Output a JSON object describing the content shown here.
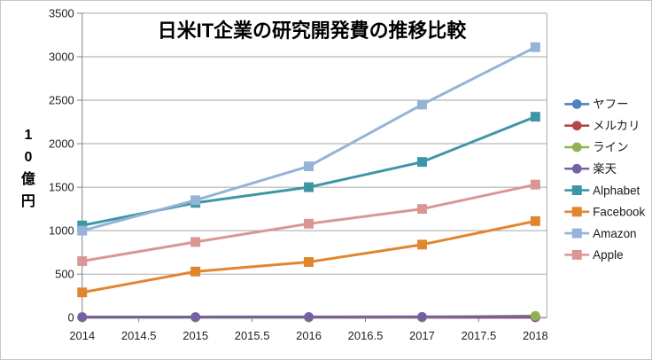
{
  "window": {
    "background": "#ffffff",
    "border_color": "#c6c6c6"
  },
  "styles": {
    "grid_color": "#a6a6a6",
    "axis_color": "#808080",
    "tick_label_color": "#1f1f1f",
    "title_color": "#000000",
    "legend_text_color": "#1a1a1a"
  },
  "chart_data": {
    "type": "line",
    "title": "日米IT企業の研究開発費の推移比較",
    "xlabel": "",
    "ylabel": "10億円",
    "grid": true,
    "legend_position": "right",
    "x": [
      2014,
      2015,
      2016,
      2017,
      2018
    ],
    "x_axis": {
      "min": 2014,
      "max": 2018,
      "tick_step": 0.5,
      "tick_labels": [
        "2014",
        "2014.5",
        "2015",
        "2015.5",
        "2016",
        "2016.5",
        "2017",
        "2017.5",
        "2018"
      ]
    },
    "y_axis": {
      "min": 0,
      "max": 3500,
      "tick_step": 500,
      "tick_labels": [
        "0",
        "500",
        "1000",
        "1500",
        "2000",
        "2500",
        "3000",
        "3500"
      ]
    },
    "legend": [
      "ヤフー",
      "メルカリ",
      "ライン",
      "楽天",
      "Alphabet",
      "Facebook",
      "Amazon",
      "Apple"
    ],
    "series": [
      {
        "name": "ヤフー",
        "color": "#4f81bd",
        "marker": "circle",
        "values": [
          5,
          5,
          5,
          5,
          5
        ]
      },
      {
        "name": "メルカリ",
        "color": "#b4464b",
        "marker": "circle",
        "values": [
          3,
          3,
          3,
          3,
          3
        ]
      },
      {
        "name": "ライン",
        "color": "#94b054",
        "marker": "circle",
        "values": [
          3,
          3,
          4,
          5,
          20
        ]
      },
      {
        "name": "楽天",
        "color": "#7460a5",
        "marker": "circle",
        "values": [
          8,
          8,
          9,
          10,
          11
        ]
      },
      {
        "name": "Alphabet",
        "color": "#3d96a8",
        "marker": "square",
        "values": [
          1060,
          1320,
          1500,
          1790,
          2310
        ]
      },
      {
        "name": "Facebook",
        "color": "#e0862e",
        "marker": "square",
        "values": [
          290,
          530,
          640,
          840,
          1110
        ]
      },
      {
        "name": "Amazon",
        "color": "#95b3d7",
        "marker": "square",
        "values": [
          1000,
          1350,
          1740,
          2450,
          3110
        ]
      },
      {
        "name": "Apple",
        "color": "#d99694",
        "marker": "square",
        "values": [
          650,
          870,
          1080,
          1250,
          1530
        ]
      }
    ],
    "top_markers": [
      {
        "series": "ライン",
        "index": 4
      }
    ]
  }
}
